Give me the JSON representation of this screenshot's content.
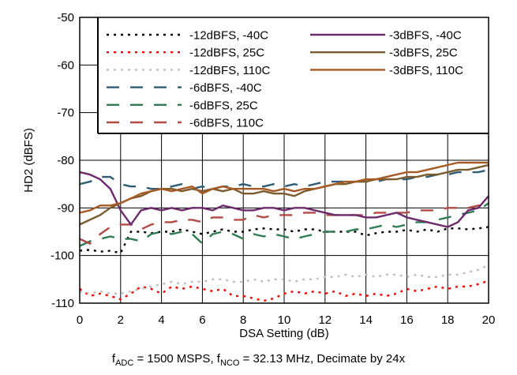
{
  "caption": {
    "parts": [
      {
        "t": "f"
      },
      {
        "t": "ADC",
        "sub": true
      },
      {
        "t": " = 1500 MSPS, f"
      },
      {
        "t": "NCO",
        "sub": true
      },
      {
        "t": " = 32.13 MHz, Decimate by 24x"
      }
    ]
  },
  "chart_data": {
    "type": "line",
    "title": "",
    "xlabel": "DSA Setting (dB)",
    "ylabel": "HD2 (dBFS)",
    "xlim": [
      0,
      20
    ],
    "ylim": [
      -110,
      -50
    ],
    "xticks": [
      0,
      2,
      4,
      6,
      8,
      10,
      12,
      14,
      16,
      18,
      20
    ],
    "yticks": [
      -50,
      -60,
      -70,
      -80,
      -90,
      -100,
      -110
    ],
    "grid": true,
    "legend": {
      "placement": "top-right",
      "columns": 2
    },
    "series": [
      {
        "name": "-12dBFS, -40C",
        "color": "#000000",
        "dash": "dot",
        "x": [
          0,
          0.5,
          1,
          1.5,
          2,
          2.5,
          3,
          3.5,
          4,
          4.5,
          5,
          5.5,
          6,
          6.5,
          7,
          7.5,
          8,
          8.5,
          9,
          9.5,
          10,
          10.5,
          11,
          11.5,
          12,
          12.5,
          13,
          13.5,
          14,
          14.5,
          15,
          15.5,
          16,
          16.5,
          17,
          17.5,
          18,
          18.5,
          19,
          19.5,
          20
        ],
        "y": [
          -99,
          -98.8,
          -99.2,
          -99,
          -99.5,
          -95,
          -95,
          -95.3,
          -95,
          -95,
          -94.5,
          -95,
          -95.5,
          -95,
          -94.5,
          -95,
          -95,
          -94.5,
          -94.3,
          -94.5,
          -94.5,
          -95,
          -94.5,
          -94.5,
          -95,
          -95,
          -95,
          -95,
          -95.8,
          -95.3,
          -95,
          -95,
          -94.6,
          -95,
          -94.5,
          -95,
          -94.3,
          -94.3,
          -94.5,
          -94.3,
          -94
        ]
      },
      {
        "name": "-12dBFS, 25C",
        "color": "#ff0000",
        "dash": "dot",
        "x": [
          0,
          0.5,
          1,
          1.5,
          2,
          2.5,
          3,
          3.5,
          4,
          4.5,
          5,
          5.5,
          6,
          6.5,
          7,
          7.5,
          8,
          8.5,
          9,
          9.5,
          10,
          10.5,
          11,
          11.5,
          12,
          12.5,
          13,
          13.5,
          14,
          14.5,
          15,
          15.5,
          16,
          16.5,
          17,
          17.5,
          18,
          18.5,
          19,
          19.5,
          20
        ],
        "y": [
          -107,
          -108.5,
          -108,
          -108.5,
          -109.2,
          -108,
          -106.5,
          -107,
          -108,
          -106.5,
          -107,
          -106.5,
          -107,
          -107.5,
          -107,
          -108.5,
          -108.5,
          -109,
          -109.5,
          -109,
          -108,
          -107.5,
          -108,
          -107.5,
          -108,
          -107.5,
          -108.5,
          -108,
          -108.5,
          -108,
          -108.5,
          -108,
          -107,
          -107.5,
          -107,
          -106.5,
          -107,
          -106.5,
          -106.5,
          -106,
          -105.3
        ]
      },
      {
        "name": "-12dBFS, 110C",
        "color": "#c0c0c0",
        "dash": "dot",
        "x": [
          0,
          0.5,
          1,
          1.5,
          2,
          2.5,
          3,
          3.5,
          4,
          4.5,
          5,
          5.5,
          6,
          6.5,
          7,
          7.5,
          8,
          8.5,
          9,
          9.5,
          10,
          10.5,
          11,
          11.5,
          12,
          12.5,
          13,
          13.5,
          14,
          14.5,
          15,
          15.5,
          16,
          16.5,
          17,
          17.5,
          18,
          18.5,
          19,
          19.5,
          20
        ],
        "y": [
          -107.5,
          -108,
          -107.5,
          -108,
          -108,
          -107.5,
          -107,
          -106.5,
          -106,
          -105.5,
          -106,
          -105.5,
          -105.5,
          -105,
          -105,
          -105.5,
          -105.5,
          -105,
          -105.5,
          -105,
          -105,
          -105.5,
          -105,
          -105,
          -104.5,
          -104.5,
          -104,
          -104.5,
          -104,
          -104.5,
          -104,
          -104,
          -104.5,
          -104,
          -104.5,
          -104.5,
          -104,
          -104,
          -103.5,
          -103,
          -102
        ]
      },
      {
        "name": "-6dBFS, -40C",
        "color": "#2f5d73",
        "dash": "dash",
        "x": [
          0,
          0.5,
          1,
          1.5,
          2,
          2.5,
          3,
          3.5,
          4,
          4.5,
          5,
          5.5,
          6,
          6.5,
          7,
          7.5,
          8,
          8.5,
          9,
          9.5,
          10,
          10.5,
          11,
          11.5,
          12,
          12.5,
          13,
          13.5,
          14,
          14.5,
          15,
          15.5,
          16,
          16.5,
          17,
          17.5,
          18,
          18.5,
          19,
          19.5,
          20
        ],
        "y": [
          -85,
          -84.5,
          -83.5,
          -83.5,
          -85,
          -85.5,
          -85.5,
          -86,
          -86,
          -85.5,
          -85,
          -86,
          -85.5,
          -86,
          -85.5,
          -85.5,
          -85,
          -85.5,
          -85.5,
          -85,
          -85.5,
          -85,
          -85.5,
          -85,
          -84.5,
          -84.5,
          -84.5,
          -84.5,
          -84.5,
          -84.5,
          -84,
          -84,
          -84,
          -83.5,
          -83.5,
          -83,
          -83,
          -82.5,
          -82.5,
          -82.5,
          -82
        ]
      },
      {
        "name": "-6dBFS, 25C",
        "color": "#2e7b54",
        "dash": "dash",
        "x": [
          0,
          0.5,
          1,
          1.5,
          2,
          2.5,
          3,
          3.5,
          4,
          4.5,
          5,
          5.5,
          6,
          6.5,
          7,
          7.5,
          8,
          8.5,
          9,
          9.5,
          10,
          10.5,
          11,
          11.5,
          12,
          12.5,
          13,
          13.5,
          14,
          14.5,
          15,
          15.5,
          16,
          16.5,
          17,
          17.5,
          18,
          18.5,
          19,
          19.5,
          20
        ],
        "y": [
          -98,
          -97,
          -96.5,
          -96,
          -96.5,
          -96.5,
          -97,
          -95.5,
          -95,
          -95.5,
          -95,
          -95.5,
          -97.5,
          -95.5,
          -95,
          -95.5,
          -96.5,
          -95.5,
          -96,
          -95.5,
          -96,
          -96.5,
          -96,
          -95.5,
          -95,
          -95,
          -95,
          -94.5,
          -94.5,
          -94,
          -93.5,
          -94,
          -93.5,
          -93,
          -93,
          -92.5,
          -92,
          -91.5,
          -91,
          -90.5,
          -89
        ]
      },
      {
        "name": "-6dBFS, 110C",
        "color": "#b24b46",
        "dash": "dash",
        "x": [
          0,
          0.5,
          1,
          1.5,
          2,
          2.5,
          3,
          3.5,
          4,
          4.5,
          5,
          5.5,
          6,
          6.5,
          7,
          7.5,
          8,
          8.5,
          9,
          9.5,
          10,
          10.5,
          11,
          11.5,
          12,
          12.5,
          13,
          13.5,
          14,
          14.5,
          15,
          15.5,
          16,
          16.5,
          17,
          17.5,
          18,
          18.5,
          19,
          19.5,
          20
        ],
        "y": [
          -96.5,
          -97.5,
          -95.5,
          -94,
          -93.5,
          -93.5,
          -94.5,
          -93.5,
          -93,
          -93,
          -92.5,
          -92.5,
          -93,
          -92,
          -92,
          -92.5,
          -92.5,
          -91.5,
          -92,
          -91.5,
          -91.5,
          -91.5,
          -91,
          -91,
          -91.5,
          -91.5,
          -91.5,
          -91.5,
          -91.5,
          -91,
          -91,
          -91,
          -91,
          -90.5,
          -90.5,
          -90.5,
          -90,
          -90,
          -90,
          -89.5,
          -89.5
        ]
      },
      {
        "name": "-3dBFS, -40C",
        "color": "#6d2a6d",
        "dash": "solid",
        "x": [
          0,
          0.5,
          1,
          1.5,
          2,
          2.5,
          3,
          3.5,
          4,
          4.5,
          5,
          5.5,
          6,
          6.5,
          7,
          7.5,
          8,
          8.5,
          9,
          9.5,
          10,
          10.5,
          11,
          11.5,
          12,
          12.5,
          13,
          13.5,
          14,
          14.5,
          15,
          15.5,
          16,
          16.5,
          17,
          17.5,
          18,
          18.5,
          19,
          19.5,
          20
        ],
        "y": [
          -82.5,
          -83,
          -84,
          -86,
          -90.5,
          -93.5,
          -90.5,
          -90,
          -90.5,
          -90,
          -90.5,
          -90,
          -90,
          -90.5,
          -89.5,
          -90,
          -90.5,
          -90.5,
          -90,
          -90,
          -90.5,
          -90,
          -90,
          -90.5,
          -91,
          -91.5,
          -91.5,
          -91.5,
          -92,
          -92,
          -91.5,
          -91,
          -92,
          -92.5,
          -93,
          -93.5,
          -94,
          -93,
          -90.5,
          -90,
          -87.5
        ]
      },
      {
        "name": "-3dBFS, 25C",
        "color": "#7a5c2e",
        "dash": "solid",
        "x": [
          0,
          0.5,
          1,
          1.5,
          2,
          2.5,
          3,
          3.5,
          4,
          4.5,
          5,
          5.5,
          6,
          6.5,
          7,
          7.5,
          8,
          8.5,
          9,
          9.5,
          10,
          10.5,
          11,
          11.5,
          12,
          12.5,
          13,
          13.5,
          14,
          14.5,
          15,
          15.5,
          16,
          16.5,
          17,
          17.5,
          18,
          18.5,
          19,
          19.5,
          20
        ],
        "y": [
          -93.5,
          -92.5,
          -91.5,
          -90,
          -89,
          -88,
          -87.5,
          -86.5,
          -86,
          -86,
          -86.5,
          -86,
          -86.5,
          -86,
          -86.5,
          -86,
          -87,
          -87,
          -86.5,
          -87,
          -87,
          -87.5,
          -86.5,
          -86,
          -85.5,
          -85,
          -85,
          -84.5,
          -84.5,
          -84,
          -84,
          -84,
          -83.5,
          -83.5,
          -83,
          -83,
          -82.5,
          -82,
          -82,
          -81.5,
          -81
        ]
      },
      {
        "name": "-3dBFS, 110C",
        "color": "#a85a25",
        "dash": "solid",
        "x": [
          0,
          0.5,
          1,
          1.5,
          2,
          2.5,
          3,
          3.5,
          4,
          4.5,
          5,
          5.5,
          6,
          6.5,
          7,
          7.5,
          8,
          8.5,
          9,
          9.5,
          10,
          10.5,
          11,
          11.5,
          12,
          12.5,
          13,
          13.5,
          14,
          14.5,
          15,
          15.5,
          16,
          16.5,
          17,
          17.5,
          18,
          18.5,
          19,
          19.5,
          20
        ],
        "y": [
          -91,
          -90.5,
          -89.5,
          -89.5,
          -89,
          -88,
          -87,
          -86.5,
          -86,
          -86.5,
          -86,
          -85.5,
          -87,
          -86,
          -85.5,
          -86,
          -86,
          -86,
          -86,
          -86.5,
          -86,
          -86.5,
          -86,
          -86,
          -85.5,
          -85,
          -84.5,
          -84.5,
          -84,
          -84,
          -83.5,
          -83,
          -82.5,
          -82.5,
          -82,
          -81.5,
          -81,
          -80.5,
          -80.5,
          -80.5,
          -80.5
        ]
      }
    ]
  }
}
